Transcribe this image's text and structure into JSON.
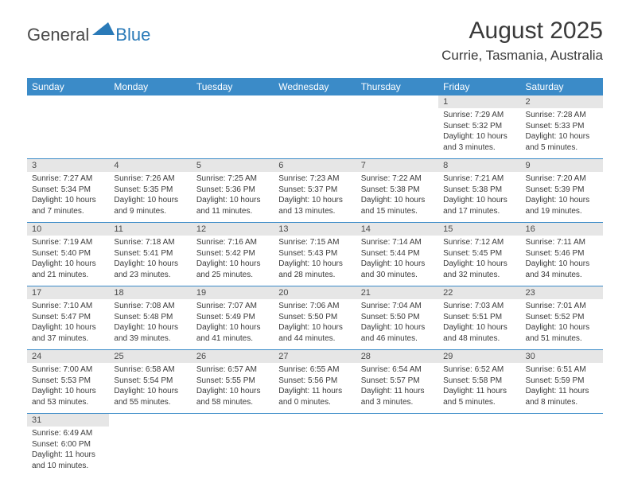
{
  "logo": {
    "text1": "General",
    "text2": "Blue"
  },
  "title": "August 2025",
  "location": "Currie, Tasmania, Australia",
  "colors": {
    "header_blue": "#3b8bc8",
    "daynum_bg": "#e6e6e6",
    "text": "#3a3a3a",
    "logo_blue": "#2a7ab8"
  },
  "weekdays": [
    "Sunday",
    "Monday",
    "Tuesday",
    "Wednesday",
    "Thursday",
    "Friday",
    "Saturday"
  ],
  "grid": [
    [
      null,
      null,
      null,
      null,
      null,
      {
        "n": "1",
        "l1": "Sunrise: 7:29 AM",
        "l2": "Sunset: 5:32 PM",
        "l3": "Daylight: 10 hours",
        "l4": "and 3 minutes."
      },
      {
        "n": "2",
        "l1": "Sunrise: 7:28 AM",
        "l2": "Sunset: 5:33 PM",
        "l3": "Daylight: 10 hours",
        "l4": "and 5 minutes."
      }
    ],
    [
      {
        "n": "3",
        "l1": "Sunrise: 7:27 AM",
        "l2": "Sunset: 5:34 PM",
        "l3": "Daylight: 10 hours",
        "l4": "and 7 minutes."
      },
      {
        "n": "4",
        "l1": "Sunrise: 7:26 AM",
        "l2": "Sunset: 5:35 PM",
        "l3": "Daylight: 10 hours",
        "l4": "and 9 minutes."
      },
      {
        "n": "5",
        "l1": "Sunrise: 7:25 AM",
        "l2": "Sunset: 5:36 PM",
        "l3": "Daylight: 10 hours",
        "l4": "and 11 minutes."
      },
      {
        "n": "6",
        "l1": "Sunrise: 7:23 AM",
        "l2": "Sunset: 5:37 PM",
        "l3": "Daylight: 10 hours",
        "l4": "and 13 minutes."
      },
      {
        "n": "7",
        "l1": "Sunrise: 7:22 AM",
        "l2": "Sunset: 5:38 PM",
        "l3": "Daylight: 10 hours",
        "l4": "and 15 minutes."
      },
      {
        "n": "8",
        "l1": "Sunrise: 7:21 AM",
        "l2": "Sunset: 5:38 PM",
        "l3": "Daylight: 10 hours",
        "l4": "and 17 minutes."
      },
      {
        "n": "9",
        "l1": "Sunrise: 7:20 AM",
        "l2": "Sunset: 5:39 PM",
        "l3": "Daylight: 10 hours",
        "l4": "and 19 minutes."
      }
    ],
    [
      {
        "n": "10",
        "l1": "Sunrise: 7:19 AM",
        "l2": "Sunset: 5:40 PM",
        "l3": "Daylight: 10 hours",
        "l4": "and 21 minutes."
      },
      {
        "n": "11",
        "l1": "Sunrise: 7:18 AM",
        "l2": "Sunset: 5:41 PM",
        "l3": "Daylight: 10 hours",
        "l4": "and 23 minutes."
      },
      {
        "n": "12",
        "l1": "Sunrise: 7:16 AM",
        "l2": "Sunset: 5:42 PM",
        "l3": "Daylight: 10 hours",
        "l4": "and 25 minutes."
      },
      {
        "n": "13",
        "l1": "Sunrise: 7:15 AM",
        "l2": "Sunset: 5:43 PM",
        "l3": "Daylight: 10 hours",
        "l4": "and 28 minutes."
      },
      {
        "n": "14",
        "l1": "Sunrise: 7:14 AM",
        "l2": "Sunset: 5:44 PM",
        "l3": "Daylight: 10 hours",
        "l4": "and 30 minutes."
      },
      {
        "n": "15",
        "l1": "Sunrise: 7:12 AM",
        "l2": "Sunset: 5:45 PM",
        "l3": "Daylight: 10 hours",
        "l4": "and 32 minutes."
      },
      {
        "n": "16",
        "l1": "Sunrise: 7:11 AM",
        "l2": "Sunset: 5:46 PM",
        "l3": "Daylight: 10 hours",
        "l4": "and 34 minutes."
      }
    ],
    [
      {
        "n": "17",
        "l1": "Sunrise: 7:10 AM",
        "l2": "Sunset: 5:47 PM",
        "l3": "Daylight: 10 hours",
        "l4": "and 37 minutes."
      },
      {
        "n": "18",
        "l1": "Sunrise: 7:08 AM",
        "l2": "Sunset: 5:48 PM",
        "l3": "Daylight: 10 hours",
        "l4": "and 39 minutes."
      },
      {
        "n": "19",
        "l1": "Sunrise: 7:07 AM",
        "l2": "Sunset: 5:49 PM",
        "l3": "Daylight: 10 hours",
        "l4": "and 41 minutes."
      },
      {
        "n": "20",
        "l1": "Sunrise: 7:06 AM",
        "l2": "Sunset: 5:50 PM",
        "l3": "Daylight: 10 hours",
        "l4": "and 44 minutes."
      },
      {
        "n": "21",
        "l1": "Sunrise: 7:04 AM",
        "l2": "Sunset: 5:50 PM",
        "l3": "Daylight: 10 hours",
        "l4": "and 46 minutes."
      },
      {
        "n": "22",
        "l1": "Sunrise: 7:03 AM",
        "l2": "Sunset: 5:51 PM",
        "l3": "Daylight: 10 hours",
        "l4": "and 48 minutes."
      },
      {
        "n": "23",
        "l1": "Sunrise: 7:01 AM",
        "l2": "Sunset: 5:52 PM",
        "l3": "Daylight: 10 hours",
        "l4": "and 51 minutes."
      }
    ],
    [
      {
        "n": "24",
        "l1": "Sunrise: 7:00 AM",
        "l2": "Sunset: 5:53 PM",
        "l3": "Daylight: 10 hours",
        "l4": "and 53 minutes."
      },
      {
        "n": "25",
        "l1": "Sunrise: 6:58 AM",
        "l2": "Sunset: 5:54 PM",
        "l3": "Daylight: 10 hours",
        "l4": "and 55 minutes."
      },
      {
        "n": "26",
        "l1": "Sunrise: 6:57 AM",
        "l2": "Sunset: 5:55 PM",
        "l3": "Daylight: 10 hours",
        "l4": "and 58 minutes."
      },
      {
        "n": "27",
        "l1": "Sunrise: 6:55 AM",
        "l2": "Sunset: 5:56 PM",
        "l3": "Daylight: 11 hours",
        "l4": "and 0 minutes."
      },
      {
        "n": "28",
        "l1": "Sunrise: 6:54 AM",
        "l2": "Sunset: 5:57 PM",
        "l3": "Daylight: 11 hours",
        "l4": "and 3 minutes."
      },
      {
        "n": "29",
        "l1": "Sunrise: 6:52 AM",
        "l2": "Sunset: 5:58 PM",
        "l3": "Daylight: 11 hours",
        "l4": "and 5 minutes."
      },
      {
        "n": "30",
        "l1": "Sunrise: 6:51 AM",
        "l2": "Sunset: 5:59 PM",
        "l3": "Daylight: 11 hours",
        "l4": "and 8 minutes."
      }
    ],
    [
      {
        "n": "31",
        "l1": "Sunrise: 6:49 AM",
        "l2": "Sunset: 6:00 PM",
        "l3": "Daylight: 11 hours",
        "l4": "and 10 minutes."
      },
      null,
      null,
      null,
      null,
      null,
      null
    ]
  ]
}
